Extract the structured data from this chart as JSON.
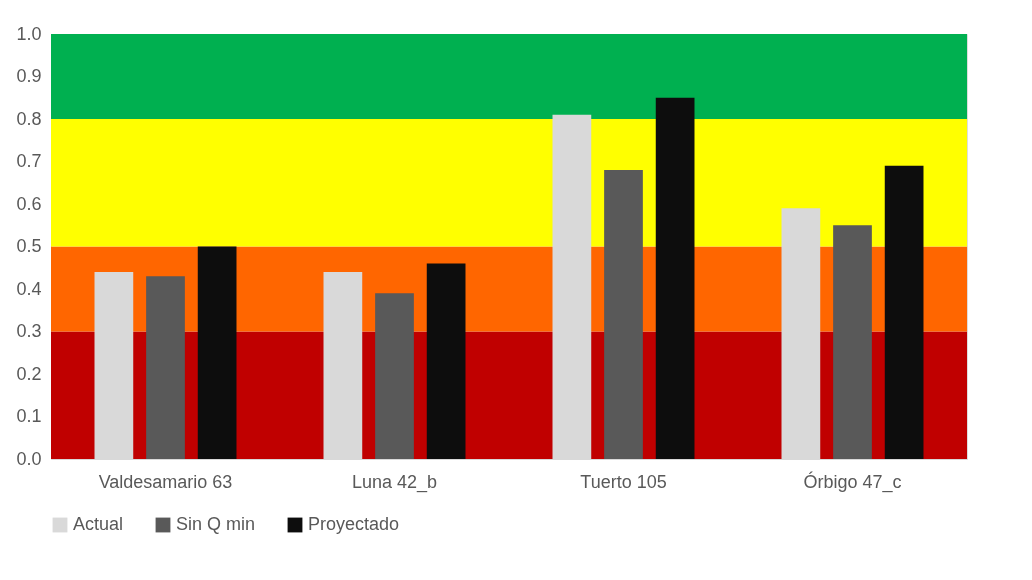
{
  "chart_data": {
    "type": "bar",
    "categories": [
      "Valdesamario 63",
      "Luna 42_b",
      "Tuerto 105",
      "Órbigo 47_c"
    ],
    "series": [
      {
        "name": "Actual",
        "color": "#d9d9d9",
        "values": [
          0.44,
          0.44,
          0.81,
          0.59
        ]
      },
      {
        "name": "Sin Q min",
        "color": "#595959",
        "values": [
          0.43,
          0.39,
          0.68,
          0.55
        ]
      },
      {
        "name": "Proyectado",
        "color": "#0d0d0d",
        "values": [
          0.5,
          0.46,
          0.85,
          0.69
        ]
      }
    ],
    "ylim": [
      0,
      1
    ],
    "yticks": [
      {
        "value": 0,
        "label": "0.0"
      },
      {
        "value": 0.1,
        "label": "0.1"
      },
      {
        "value": 0.2,
        "label": "0.2"
      },
      {
        "value": 0.3,
        "label": "0.3"
      },
      {
        "value": 0.4,
        "label": "0.4"
      },
      {
        "value": 0.5,
        "label": "0.5"
      },
      {
        "value": 0.6,
        "label": "0.6"
      },
      {
        "value": 0.7,
        "label": "0.7"
      },
      {
        "value": 0.8,
        "label": "0.8"
      },
      {
        "value": 0.9,
        "label": "0.9"
      },
      {
        "value": 1,
        "label": "1.0"
      }
    ],
    "bands": [
      {
        "axis": "y",
        "from": 0,
        "to": 0.3,
        "color": "#c00000"
      },
      {
        "axis": "y",
        "from": 0.3,
        "to": 0.5,
        "color": "#ff6600"
      },
      {
        "axis": "y",
        "from": 0.5,
        "to": 0.8,
        "color": "#ffff00"
      },
      {
        "axis": "y",
        "from": 0.8,
        "to": 1,
        "color": "#00b050"
      }
    ],
    "legend": "bottom"
  }
}
